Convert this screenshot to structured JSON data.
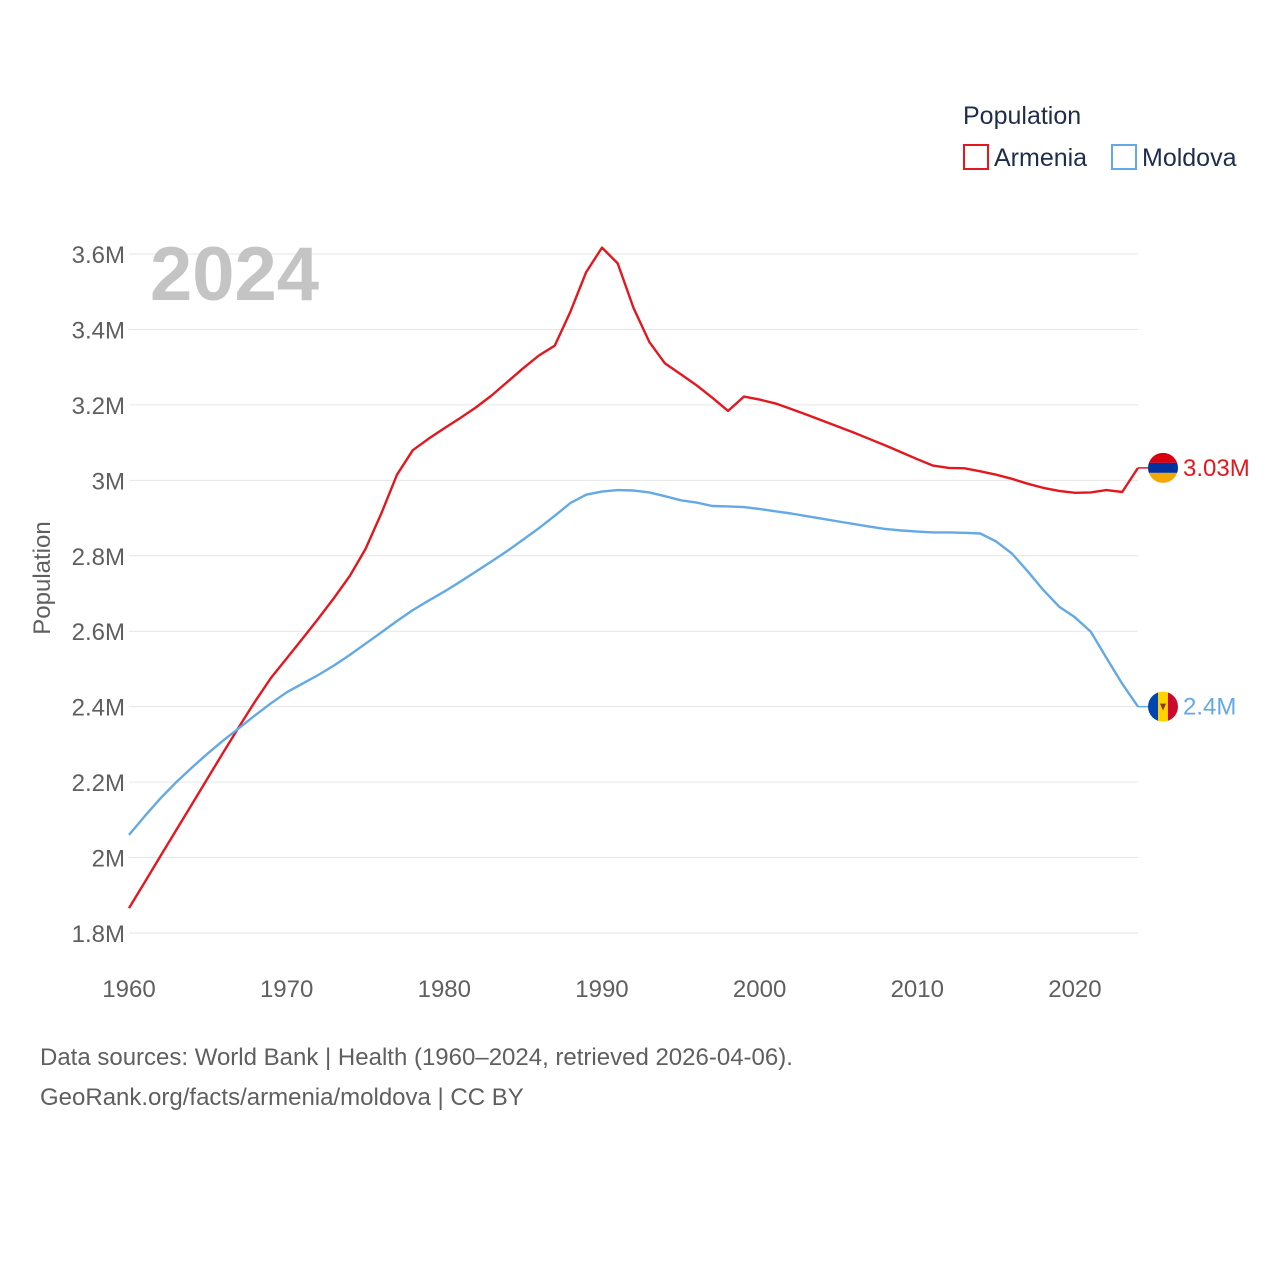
{
  "chart_data": {
    "type": "line",
    "year_label": "2024",
    "ylabel": "Population",
    "xlim": [
      1960,
      2024
    ],
    "ylim": [
      1800000,
      3600000
    ],
    "x_ticks": [
      1960,
      1970,
      1980,
      1990,
      2000,
      2010,
      2020
    ],
    "x_tick_labels": [
      "1960",
      "1970",
      "1980",
      "1990",
      "2000",
      "2010",
      "2020"
    ],
    "y_ticks": [
      1800000,
      2000000,
      2200000,
      2400000,
      2600000,
      2800000,
      3000000,
      3200000,
      3400000,
      3600000
    ],
    "y_tick_labels": [
      "1.8M",
      "2M",
      "2.2M",
      "2.4M",
      "2.6M",
      "2.8M",
      "3M",
      "3.2M",
      "3.4M",
      "3.6M"
    ],
    "legend": {
      "title": "Population",
      "position": "top-right"
    },
    "x": [
      1960,
      1961,
      1962,
      1963,
      1964,
      1965,
      1966,
      1967,
      1968,
      1969,
      1970,
      1971,
      1972,
      1973,
      1974,
      1975,
      1976,
      1977,
      1978,
      1979,
      1980,
      1981,
      1982,
      1983,
      1984,
      1985,
      1986,
      1987,
      1988,
      1989,
      1990,
      1991,
      1992,
      1993,
      1994,
      1995,
      1996,
      1997,
      1998,
      1999,
      2000,
      2001,
      2002,
      2003,
      2004,
      2005,
      2006,
      2007,
      2008,
      2009,
      2010,
      2011,
      2012,
      2013,
      2014,
      2015,
      2016,
      2017,
      2018,
      2019,
      2020,
      2021,
      2022,
      2023,
      2024
    ],
    "series": [
      {
        "name": "Armenia",
        "color": "#e4171f",
        "end_label": "3.03M",
        "flag": "armenia",
        "values": [
          1866000,
          1935000,
          2004000,
          2073000,
          2142000,
          2211000,
          2280000,
          2348000,
          2414000,
          2476000,
          2528000,
          2580000,
          2633000,
          2688000,
          2746000,
          2818000,
          2912000,
          3015000,
          3080000,
          3110000,
          3138000,
          3165000,
          3193000,
          3225000,
          3261000,
          3297000,
          3331000,
          3357000,
          3447000,
          3552000,
          3617000,
          3575000,
          3457000,
          3367000,
          3310000,
          3281000,
          3252000,
          3219000,
          3184000,
          3222000,
          3214000,
          3204000,
          3189000,
          3174000,
          3158000,
          3142000,
          3126000,
          3109000,
          3092000,
          3074000,
          3056000,
          3039000,
          3033000,
          3032000,
          3024000,
          3015000,
          3004000,
          2991000,
          2980000,
          2972000,
          2967000,
          2968000,
          2974000,
          2969000,
          3033000
        ]
      },
      {
        "name": "Moldova",
        "color": "#63a9e6",
        "end_label": "2.4M",
        "flag": "moldova",
        "values": [
          2060000,
          2110000,
          2157000,
          2200000,
          2239000,
          2276000,
          2311000,
          2344000,
          2377000,
          2409000,
          2438000,
          2461000,
          2484000,
          2509000,
          2537000,
          2567000,
          2597000,
          2627000,
          2656000,
          2681000,
          2705000,
          2731000,
          2758000,
          2785000,
          2813000,
          2843000,
          2873000,
          2906000,
          2940000,
          2962000,
          2970000,
          2974000,
          2973000,
          2968000,
          2958000,
          2947000,
          2941000,
          2932000,
          2931000,
          2929000,
          2924000,
          2918000,
          2912000,
          2905000,
          2898000,
          2891000,
          2884000,
          2877000,
          2871000,
          2867000,
          2864000,
          2862000,
          2862000,
          2861000,
          2859000,
          2838000,
          2806000,
          2759000,
          2709000,
          2665000,
          2637000,
          2599000,
          2529000,
          2461000,
          2400000
        ]
      }
    ]
  },
  "footer": {
    "line1": "Data sources: World Bank | Health (1960–2024, retrieved 2026-04-06).",
    "line2": "GeoRank.org/facts/armenia/moldova | CC BY"
  }
}
